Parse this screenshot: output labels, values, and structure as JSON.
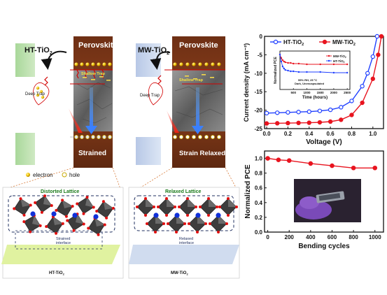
{
  "left_panel": {
    "material_label_main": "HT-TiO",
    "material_label_sub": "2",
    "perovskite_label": "Perovskite",
    "deep_trap_label": "Deep Trap",
    "shallow_trap_label": "Shallow Trap",
    "state_label": "Strained",
    "lattice_label": "Distorted Lattice",
    "interface_label_line1": "Strained",
    "interface_label_line2": "interface",
    "substrate_label_main": "HT-TiO",
    "substrate_label_sub": "2"
  },
  "middle_panel": {
    "material_label_main": "MW-TiO",
    "material_label_sub": "2",
    "perovskite_label": "Perovskite",
    "deep_trap_label": "Deep Trap",
    "shallow_trap_label": "Shallow Trap",
    "state_label": "Strain Relaxed",
    "lattice_label": "Relaxed Lattice",
    "interface_label_line1": "Relaxed",
    "interface_label_line2": "interface",
    "substrate_label_main": "MW-TiO",
    "substrate_label_sub": "2"
  },
  "legend_carriers": {
    "electron_label": "electron",
    "hole_label": "hole"
  },
  "chart_data": [
    {
      "type": "line",
      "ylabel": "Current density (mA cm⁻²)",
      "xlabel": "Voltage (V)",
      "xlim": [
        -0.02,
        1.1
      ],
      "ylim": [
        -25,
        0
      ],
      "xticks": [
        0.0,
        0.2,
        0.4,
        0.6,
        0.8,
        1.0
      ],
      "xtick_labels": [
        "0.0",
        "0.2",
        "0.4",
        "0.6",
        "0.8",
        "1.0"
      ],
      "yticks": [
        0,
        -5,
        -10,
        -15,
        -20,
        -25
      ],
      "ytick_labels": [
        "0",
        "-5",
        "-10",
        "-15",
        "-20",
        "-25"
      ],
      "legend_position": "top-left",
      "series": [
        {
          "name_main": "HT-TiO",
          "name_sub": "2",
          "color": "#1f3fff",
          "marker": "circle-open",
          "x": [
            0.0,
            0.1,
            0.2,
            0.3,
            0.4,
            0.5,
            0.6,
            0.7,
            0.8,
            0.9,
            0.95,
            1.0,
            1.04
          ],
          "y": [
            -20.8,
            -20.7,
            -20.6,
            -20.5,
            -20.4,
            -20.2,
            -19.9,
            -19.2,
            -17.5,
            -13.5,
            -10.0,
            -5.5,
            0.0
          ]
        },
        {
          "name_main": "MW-TiO",
          "name_sub": "2",
          "color": "#e8141f",
          "marker": "circle-filled",
          "x": [
            0.0,
            0.1,
            0.2,
            0.3,
            0.4,
            0.5,
            0.6,
            0.7,
            0.8,
            0.9,
            1.0,
            1.05,
            1.08
          ],
          "y": [
            -23.6,
            -23.55,
            -23.5,
            -23.45,
            -23.4,
            -23.3,
            -23.1,
            -22.6,
            -21.3,
            -18.0,
            -11.5,
            -5.0,
            0.0
          ]
        }
      ],
      "inset": {
        "ylabel": "Normalized PCE",
        "xlabel": "Time (hours)",
        "xlim": [
          0,
          2600
        ],
        "ylim": [
          0.5,
          1.05
        ],
        "xticks": [
          500,
          1000,
          1500,
          2000,
          2500
        ],
        "xtick_labels": [
          "500",
          "1000",
          "1500",
          "2000",
          "2500"
        ],
        "annotation_line1": "55% RH, 25 °C",
        "annotation_line2": "Dark, Unencapsulated",
        "series": [
          {
            "name_main": "MW-TiO",
            "name_sub": "2",
            "color": "#e8141f",
            "x": [
              0,
              50,
              100,
              150,
              200,
              300,
              400,
              500,
              700,
              1000,
              1500,
              2000,
              2500
            ],
            "y": [
              1.0,
              0.95,
              0.92,
              0.9,
              0.89,
              0.88,
              0.88,
              0.87,
              0.87,
              0.86,
              0.86,
              0.86,
              0.86
            ]
          },
          {
            "name_main": "HT-TiO",
            "name_sub": "2",
            "color": "#1f3fff",
            "x": [
              0,
              50,
              100,
              150,
              200,
              300,
              400,
              500,
              700,
              1000,
              1500,
              2000,
              2500
            ],
            "y": [
              1.0,
              0.9,
              0.83,
              0.8,
              0.78,
              0.77,
              0.76,
              0.76,
              0.75,
              0.75,
              0.75,
              0.74,
              0.74
            ]
          }
        ]
      }
    },
    {
      "type": "line",
      "ylabel": "Normalized PCE",
      "xlabel": "Bending cycles",
      "xlim": [
        -30,
        1080
      ],
      "ylim": [
        0.0,
        1.1
      ],
      "xticks": [
        0,
        200,
        400,
        600,
        800,
        1000
      ],
      "xtick_labels": [
        "0",
        "200",
        "400",
        "600",
        "800",
        "1000"
      ],
      "yticks": [
        0.0,
        0.2,
        0.4,
        0.6,
        0.8,
        1.0
      ],
      "ytick_labels": [
        "0.0",
        "0.2",
        "0.4",
        "0.6",
        "0.8",
        "1.0"
      ],
      "series": [
        {
          "color": "#e8141f",
          "x": [
            0,
            100,
            200,
            400,
            600,
            800,
            1000
          ],
          "y": [
            1.0,
            0.98,
            0.97,
            0.93,
            0.9,
            0.87,
            0.87
          ]
        }
      ]
    }
  ]
}
